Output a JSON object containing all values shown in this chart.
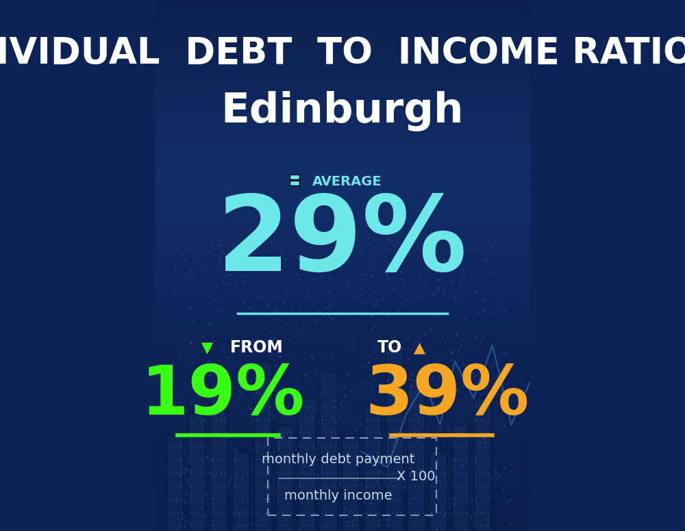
{
  "title_line1": "INDIVIDUAL  DEBT  TO  INCOME RATIO  IN",
  "title_line2": "Edinburgh",
  "title_color": "#ffffff",
  "title_line1_fontsize": 38,
  "title_line2_fontsize": 44,
  "avg_label": "AVERAGE",
  "avg_value": "29%",
  "avg_color": "#6de8e8",
  "from_label": "FROM",
  "from_value": "19%",
  "from_color": "#39ff14",
  "to_label": "TO",
  "to_value": "39%",
  "to_color": "#f5a623",
  "bg_color": "#0d2358",
  "formula_numerator": "monthly debt payment",
  "formula_denominator": "monthly income",
  "formula_multiplier": "X 100",
  "line_color_avg": "#6de8e8",
  "line_color_from": "#39ff14",
  "line_color_to": "#f5a623"
}
